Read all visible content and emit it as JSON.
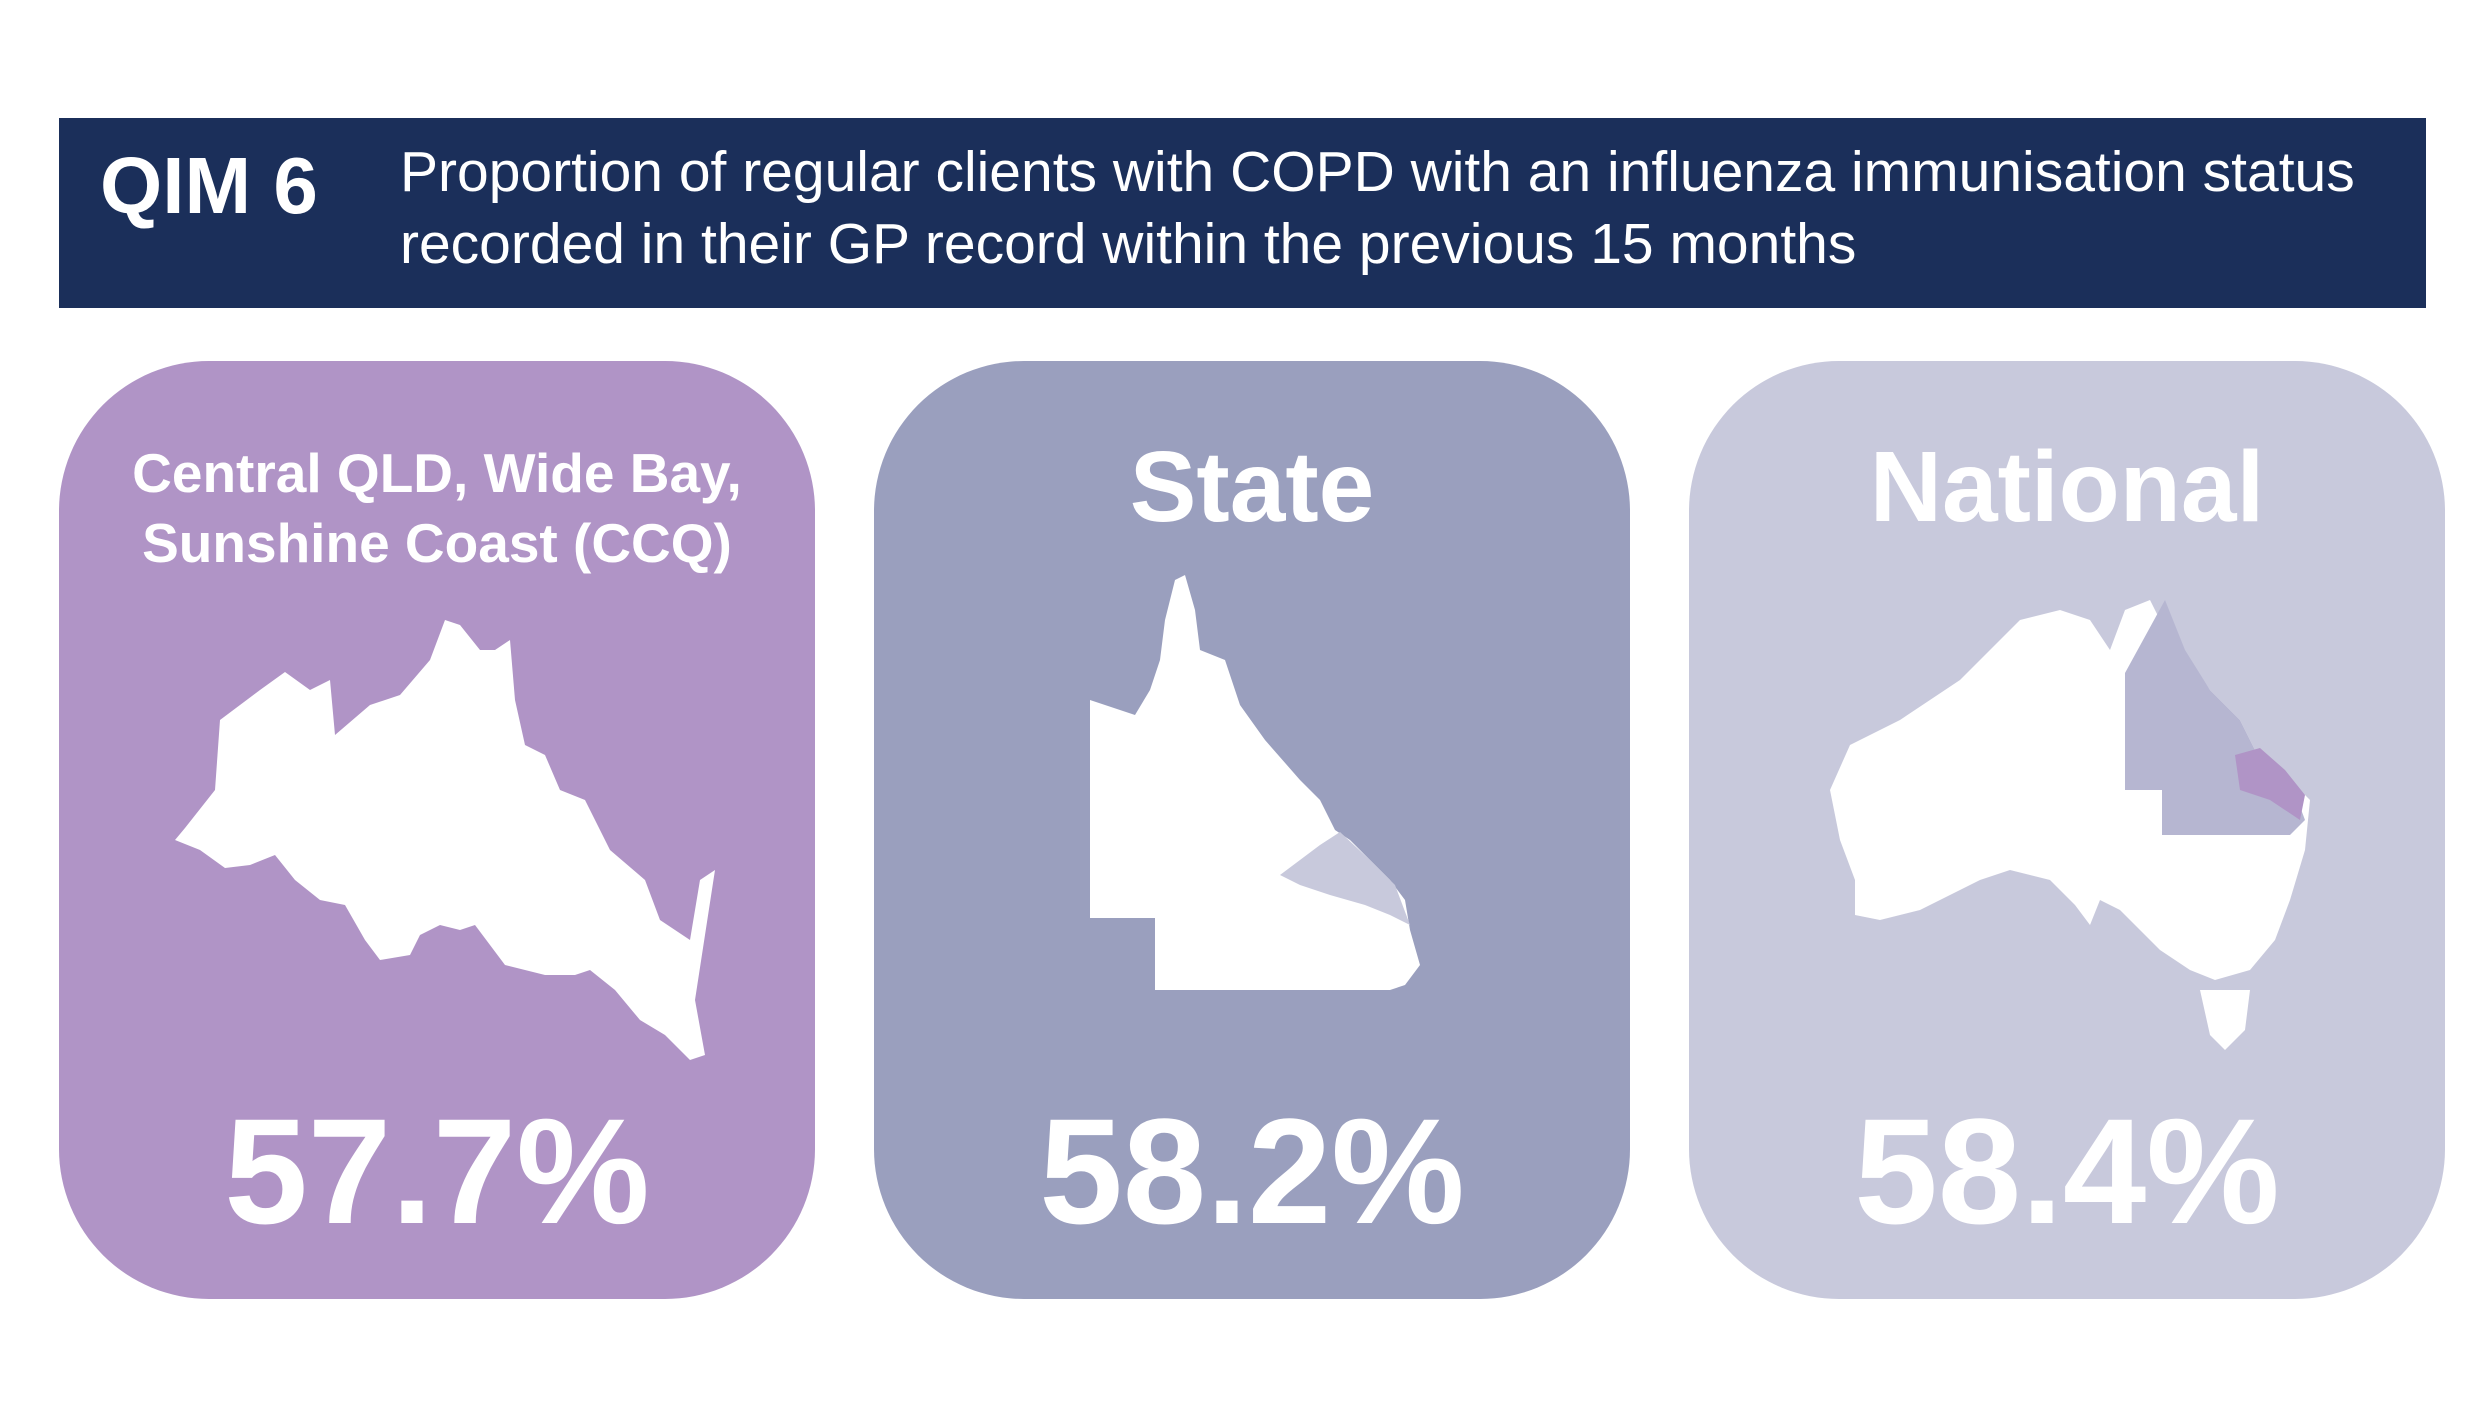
{
  "header": {
    "label": "QIM 6",
    "title": "Proportion of regular clients with COPD with an influenza immunisation status recorded in their GP record within the previous 15 months"
  },
  "cards": [
    {
      "label": "Central QLD, Wide Bay, Sunshine Coast (CCQ)",
      "value": "57.7%"
    },
    {
      "label": "State",
      "value": "58.2%"
    },
    {
      "label": "National",
      "value": "58.4%"
    }
  ]
}
